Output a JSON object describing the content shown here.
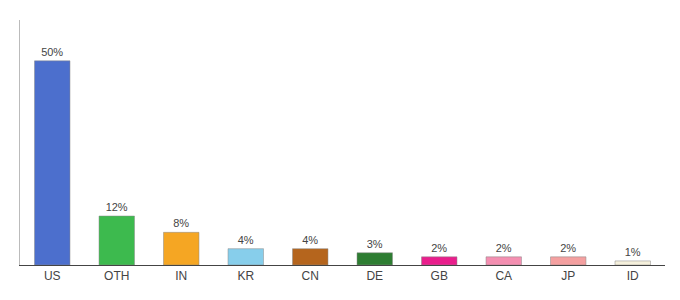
{
  "chart_data": {
    "type": "bar",
    "categories": [
      "US",
      "OTH",
      "IN",
      "KR",
      "CN",
      "DE",
      "GB",
      "CA",
      "JP",
      "ID"
    ],
    "values": [
      50,
      12,
      8,
      4,
      4,
      3,
      2,
      2,
      2,
      1
    ],
    "value_labels": [
      "50%",
      "12%",
      "8%",
      "4%",
      "4%",
      "3%",
      "2%",
      "2%",
      "2%",
      "1%"
    ],
    "colors": [
      "#4c6fcd",
      "#3dba4e",
      "#f5a623",
      "#87ceeb",
      "#b5651d",
      "#2e7d32",
      "#e91e8c",
      "#f48fb1",
      "#f4a0a0",
      "#f5f0dc"
    ],
    "ylim": [
      0,
      60
    ],
    "data_labels": true,
    "tick_labels": "x",
    "grid": false
  }
}
